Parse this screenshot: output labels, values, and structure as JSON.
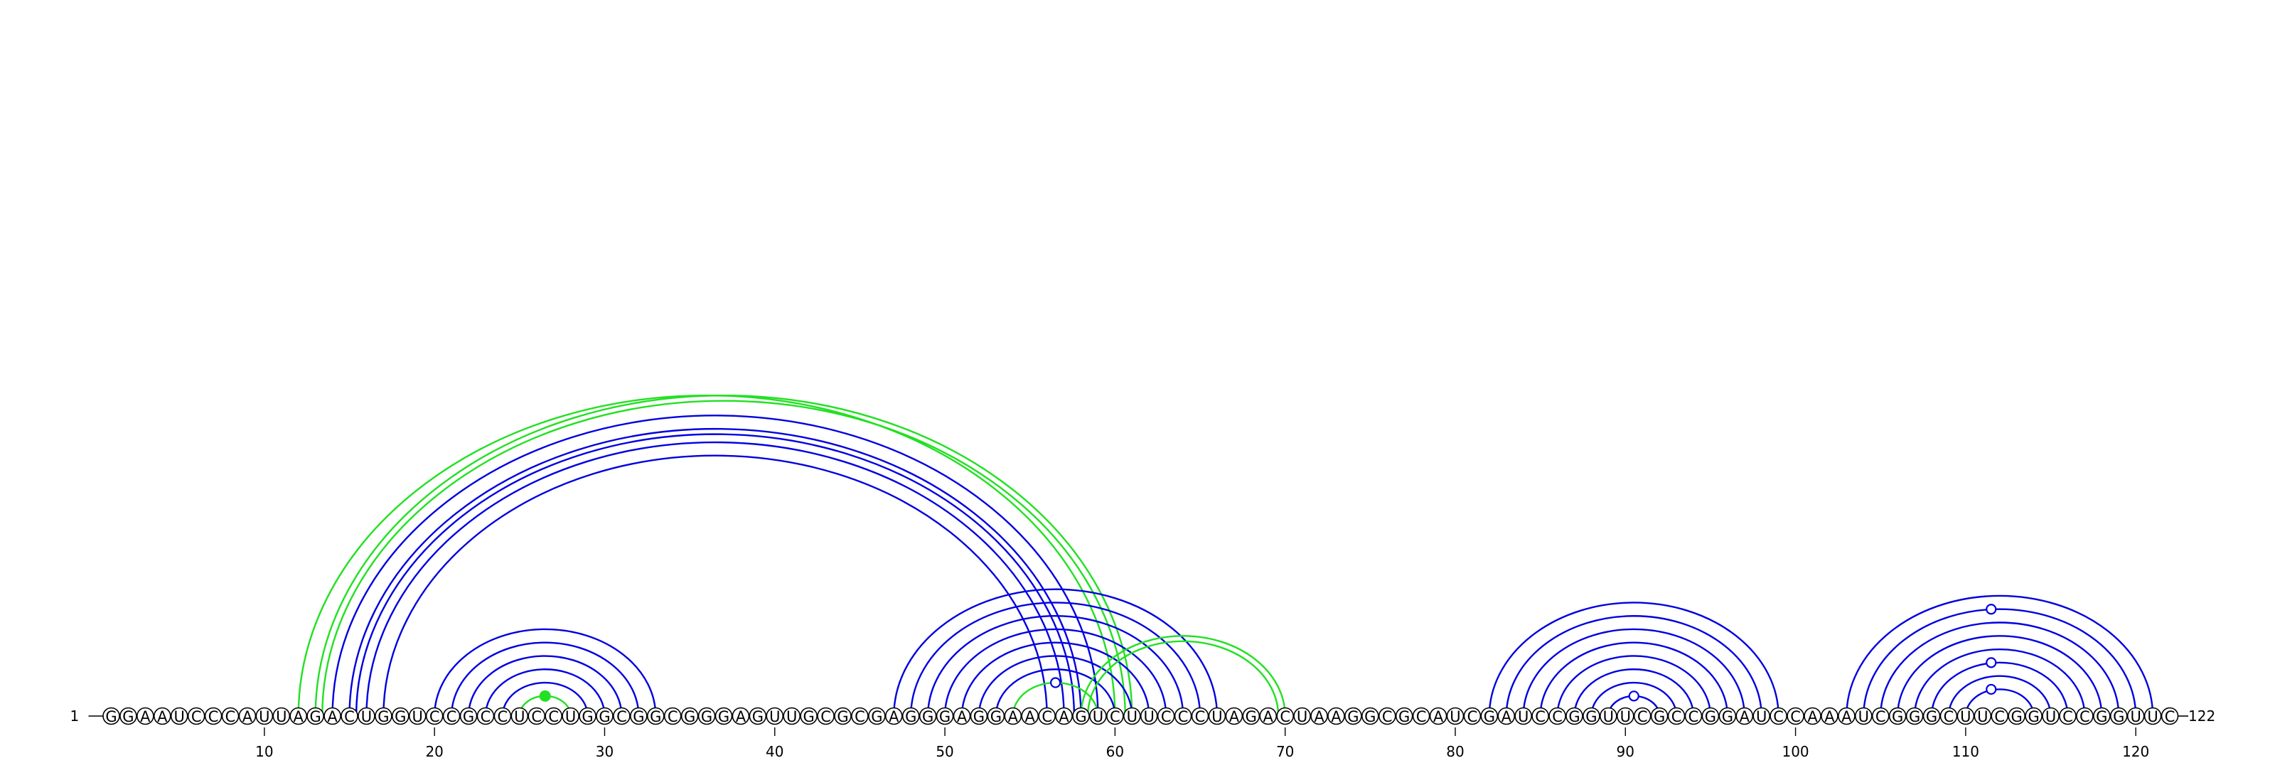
{
  "sequence": "GGAAUCCCAUUAGACUGGUCCGCCUCCUGGCGGCGGGAGUUGCGCGAGGGAGGAACAGUCUUCCCUAGACUAAGGCGCAUCGAUCCGGUUCGCCGGAUCCAAAUCGGGCUUCGGUCCGGUUC",
  "start_label": "1",
  "end_label": "122",
  "ticks": [
    10,
    20,
    30,
    40,
    50,
    60,
    70,
    80,
    90,
    100,
    110,
    120
  ],
  "colors": {
    "blue": "#0000e0",
    "green": "#22e022",
    "black": "#000000"
  },
  "arcs": [
    {
      "i": 20,
      "j": 33,
      "color": "blue"
    },
    {
      "i": 21,
      "j": 32,
      "color": "blue"
    },
    {
      "i": 22,
      "j": 31,
      "color": "blue"
    },
    {
      "i": 23,
      "j": 30,
      "color": "blue"
    },
    {
      "i": 24,
      "j": 29,
      "color": "blue"
    },
    {
      "i": 25,
      "j": 28,
      "color": "green"
    },
    {
      "i": 12,
      "j": 60,
      "color": "green"
    },
    {
      "i": 13,
      "j": 61,
      "color": "green"
    },
    {
      "i": 13.4,
      "j": 60.6,
      "color": "green"
    },
    {
      "i": 14,
      "j": 59,
      "color": "blue"
    },
    {
      "i": 15,
      "j": 58,
      "color": "blue"
    },
    {
      "i": 15.4,
      "j": 57.6,
      "color": "blue"
    },
    {
      "i": 16,
      "j": 57,
      "color": "blue"
    },
    {
      "i": 17,
      "j": 56,
      "color": "blue"
    },
    {
      "i": 47,
      "j": 66,
      "color": "blue"
    },
    {
      "i": 48,
      "j": 65,
      "color": "blue"
    },
    {
      "i": 49,
      "j": 64,
      "color": "blue"
    },
    {
      "i": 50,
      "j": 63,
      "color": "blue"
    },
    {
      "i": 51,
      "j": 62,
      "color": "blue"
    },
    {
      "i": 52,
      "j": 61,
      "color": "blue"
    },
    {
      "i": 53,
      "j": 60,
      "color": "blue"
    },
    {
      "i": 54,
      "j": 59,
      "color": "green"
    },
    {
      "i": 58,
      "j": 70,
      "color": "green"
    },
    {
      "i": 58.4,
      "j": 69.6,
      "color": "green"
    },
    {
      "i": 82,
      "j": 99,
      "color": "blue"
    },
    {
      "i": 83,
      "j": 98,
      "color": "blue"
    },
    {
      "i": 84,
      "j": 97,
      "color": "blue"
    },
    {
      "i": 85,
      "j": 96,
      "color": "blue"
    },
    {
      "i": 86,
      "j": 95,
      "color": "blue"
    },
    {
      "i": 87,
      "j": 94,
      "color": "blue"
    },
    {
      "i": 88,
      "j": 93,
      "color": "blue"
    },
    {
      "i": 89,
      "j": 92,
      "color": "blue"
    },
    {
      "i": 103,
      "j": 121,
      "color": "blue"
    },
    {
      "i": 104,
      "j": 120,
      "color": "blue"
    },
    {
      "i": 105,
      "j": 119,
      "color": "blue"
    },
    {
      "i": 106,
      "j": 118,
      "color": "blue"
    },
    {
      "i": 107,
      "j": 117,
      "color": "blue"
    },
    {
      "i": 108,
      "j": 116,
      "color": "blue"
    },
    {
      "i": 109,
      "j": 115,
      "color": "blue"
    },
    {
      "i": 110,
      "j": 114,
      "color": "blue"
    }
  ],
  "markers": [
    {
      "pos": 26.5,
      "arc_index": 5,
      "color": "green",
      "filled": true
    },
    {
      "pos": 56.5,
      "arc_index": 21,
      "color": "blue",
      "filled": false
    },
    {
      "pos": 90.5,
      "arc_index": 31,
      "color": "blue",
      "filled": false
    },
    {
      "pos": 111.5,
      "arc_index": 39,
      "color": "blue",
      "filled": false
    },
    {
      "pos": 111.5,
      "arc_index": 37,
      "color": "blue",
      "filled": false
    },
    {
      "pos": 111.5,
      "arc_index": 33,
      "color": "blue",
      "filled": false
    }
  ]
}
